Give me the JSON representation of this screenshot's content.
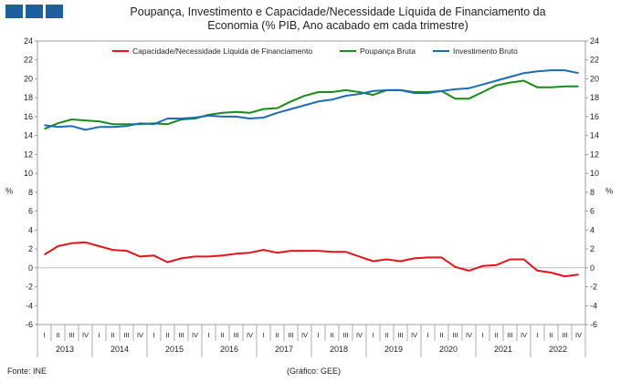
{
  "header": {
    "title_line1": "Poupança, Investimento e Capacidade/Necessidade Líquida de Financiamento da",
    "title_line2": "Economia (% PIB, Ano acabado em cada trimestre)"
  },
  "footer": {
    "source": "Fonte: INE",
    "credit": "(Gráfico: GEE)"
  },
  "chart_data": {
    "type": "line",
    "ylabel_left": "%",
    "ylabel_right": "%",
    "ylim": [
      -6,
      24
    ],
    "yticks": [
      -6,
      -4,
      -2,
      0,
      2,
      4,
      6,
      8,
      10,
      12,
      14,
      16,
      18,
      20,
      22,
      24
    ],
    "quarter_labels": [
      "I",
      "II",
      "III",
      "IV"
    ],
    "years": [
      "2013",
      "2014",
      "2015",
      "2016",
      "2017",
      "2018",
      "2019",
      "2020",
      "2021",
      "2022"
    ],
    "legend_position": "top",
    "series": [
      {
        "name": "Capacidade/Necessidade Líquida de Financiamento",
        "color": "#e3141b",
        "values": [
          1.4,
          2.3,
          2.6,
          2.7,
          2.3,
          1.9,
          1.8,
          1.2,
          1.3,
          0.6,
          1.0,
          1.2,
          1.2,
          1.3,
          1.5,
          1.6,
          1.9,
          1.6,
          1.8,
          1.8,
          1.8,
          1.7,
          1.7,
          1.2,
          0.7,
          0.9,
          0.7,
          1.0,
          1.1,
          1.1,
          0.1,
          -0.3,
          0.2,
          0.3,
          0.9,
          0.9,
          -0.3,
          -0.5,
          -0.9,
          -0.7
        ]
      },
      {
        "name": "Poupança Bruta",
        "color": "#1a8a1a",
        "values": [
          14.7,
          15.3,
          15.7,
          15.6,
          15.5,
          15.2,
          15.2,
          15.2,
          15.3,
          15.2,
          15.7,
          15.8,
          16.2,
          16.4,
          16.5,
          16.4,
          16.8,
          16.9,
          17.6,
          18.2,
          18.6,
          18.6,
          18.8,
          18.6,
          18.3,
          18.8,
          18.8,
          18.6,
          18.6,
          18.7,
          17.9,
          17.9,
          18.6,
          19.3,
          19.6,
          19.8,
          19.1,
          19.1,
          19.2,
          19.2
        ]
      },
      {
        "name": "Investimento Bruto",
        "color": "#1c6cb5",
        "values": [
          15.1,
          14.9,
          15.0,
          14.6,
          14.9,
          14.9,
          15.0,
          15.3,
          15.2,
          15.8,
          15.8,
          15.9,
          16.1,
          16.0,
          16.0,
          15.8,
          15.9,
          16.4,
          16.8,
          17.2,
          17.6,
          17.8,
          18.2,
          18.4,
          18.7,
          18.8,
          18.8,
          18.5,
          18.5,
          18.7,
          18.9,
          19.0,
          19.4,
          19.8,
          20.2,
          20.6,
          20.8,
          20.9,
          20.9,
          20.6
        ]
      }
    ]
  }
}
